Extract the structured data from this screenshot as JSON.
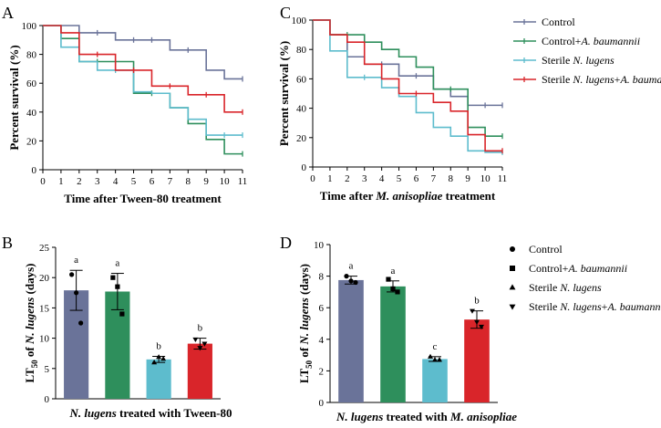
{
  "colors": {
    "control": "#6a7399",
    "control_ab": "#2e8f5c",
    "sterile": "#5dbccd",
    "sterile_ab": "#d9252a"
  },
  "legend_top": [
    {
      "key": "control",
      "label": "Control"
    },
    {
      "key": "control_ab",
      "label": "Control+",
      "italic": "A. baumannii"
    },
    {
      "key": "sterile",
      "label": "Sterile ",
      "italic": "N. lugens"
    },
    {
      "key": "sterile_ab",
      "label": "Sterile ",
      "italic": "N. lugens",
      "suffix": "+",
      "italic2": "A. baumannii"
    }
  ],
  "legend_bottom": [
    {
      "marker": "circle",
      "label": "Control"
    },
    {
      "marker": "square",
      "label": "Control+",
      "italic": "A. baumannii"
    },
    {
      "marker": "triangle-up",
      "label": "Sterile ",
      "italic": "N. lugens"
    },
    {
      "marker": "triangle-down",
      "label": "Sterile ",
      "italic": "N. lugens",
      "suffix": "+",
      "italic2": "A. baumannii"
    }
  ],
  "chart_data": [
    {
      "panel": "A",
      "type": "line",
      "step": true,
      "ylabel": "Percent survival (%)",
      "xlabel": "Time after Tween-80 treatment",
      "xlim": [
        0,
        11
      ],
      "ylim": [
        0,
        100
      ],
      "xticks": [
        "0",
        "1",
        "2",
        "3",
        "4",
        "5",
        "6",
        "7",
        "8",
        "9",
        "10",
        "11"
      ],
      "yticks": [
        "0",
        "20",
        "40",
        "60",
        "80",
        "100"
      ],
      "series": [
        {
          "key": "control",
          "steps": [
            [
              0,
              100
            ],
            [
              2,
              95
            ],
            [
              4,
              90
            ],
            [
              7,
              83
            ],
            [
              9,
              69
            ],
            [
              10,
              63
            ]
          ],
          "censor": [
            [
              3,
              95
            ],
            [
              5,
              90
            ],
            [
              6,
              90
            ],
            [
              8,
              83
            ],
            [
              11,
              63
            ]
          ]
        },
        {
          "key": "control_ab",
          "steps": [
            [
              0,
              100
            ],
            [
              1,
              91
            ],
            [
              2,
              75
            ],
            [
              5,
              53
            ],
            [
              7,
              43
            ],
            [
              8,
              32
            ],
            [
              9,
              21
            ],
            [
              10,
              11
            ]
          ],
          "censor": [
            [
              3,
              75
            ],
            [
              4,
              75
            ],
            [
              6,
              53
            ],
            [
              11,
              11
            ]
          ]
        },
        {
          "key": "sterile",
          "steps": [
            [
              0,
              100
            ],
            [
              1,
              85
            ],
            [
              2,
              75
            ],
            [
              3,
              69
            ],
            [
              5,
              54
            ],
            [
              6,
              53
            ],
            [
              7,
              43
            ],
            [
              8,
              35
            ],
            [
              9,
              24
            ]
          ],
          "censor": [
            [
              4,
              69
            ],
            [
              10,
              24
            ],
            [
              11,
              24
            ]
          ]
        },
        {
          "key": "sterile_ab",
          "steps": [
            [
              0,
              100
            ],
            [
              1,
              95
            ],
            [
              2,
              80
            ],
            [
              4,
              69
            ],
            [
              6,
              58
            ],
            [
              8,
              52
            ],
            [
              10,
              40
            ]
          ],
          "censor": [
            [
              3,
              80
            ],
            [
              5,
              69
            ],
            [
              7,
              58
            ],
            [
              9,
              52
            ],
            [
              11,
              40
            ]
          ]
        }
      ]
    },
    {
      "panel": "C",
      "type": "line",
      "step": true,
      "ylabel": "Percent survival (%)",
      "xlabel_prefix": "Time after ",
      "xlabel_italic": "M. anisopliae",
      "xlabel_suffix": " treatment",
      "xlim": [
        0,
        11
      ],
      "ylim": [
        0,
        100
      ],
      "xticks": [
        "0",
        "1",
        "2",
        "3",
        "4",
        "5",
        "6",
        "7",
        "8",
        "9",
        "10",
        "11"
      ],
      "yticks": [
        "0",
        "20",
        "40",
        "60",
        "80",
        "100"
      ],
      "series": [
        {
          "key": "control",
          "steps": [
            [
              0,
              100
            ],
            [
              1,
              90
            ],
            [
              2,
              75
            ],
            [
              3,
              70
            ],
            [
              5,
              62
            ],
            [
              7,
              53
            ],
            [
              8,
              48
            ],
            [
              9,
              42
            ]
          ],
          "censor": [
            [
              4,
              70
            ],
            [
              6,
              62
            ],
            [
              10,
              42
            ],
            [
              11,
              42
            ]
          ]
        },
        {
          "key": "control_ab",
          "steps": [
            [
              0,
              100
            ],
            [
              1,
              90
            ],
            [
              3,
              85
            ],
            [
              4,
              80
            ],
            [
              5,
              75
            ],
            [
              6,
              68
            ],
            [
              7,
              53
            ],
            [
              9,
              27
            ],
            [
              10,
              21
            ]
          ],
          "censor": [
            [
              2,
              90
            ],
            [
              8,
              53
            ],
            [
              11,
              21
            ]
          ]
        },
        {
          "key": "sterile",
          "steps": [
            [
              0,
              100
            ],
            [
              1,
              79
            ],
            [
              2,
              61
            ],
            [
              4,
              54
            ],
            [
              5,
              48
            ],
            [
              6,
              37
            ],
            [
              7,
              27
            ],
            [
              8,
              21
            ],
            [
              9,
              11
            ],
            [
              10,
              10
            ]
          ],
          "censor": [
            [
              3,
              61
            ],
            [
              11,
              10
            ]
          ]
        },
        {
          "key": "sterile_ab",
          "steps": [
            [
              0,
              100
            ],
            [
              1,
              90
            ],
            [
              2,
              85
            ],
            [
              3,
              70
            ],
            [
              4,
              60
            ],
            [
              5,
              50
            ],
            [
              7,
              44
            ],
            [
              8,
              38
            ],
            [
              9,
              22
            ],
            [
              10,
              11
            ]
          ],
          "censor": [
            [
              6,
              50
            ],
            [
              11,
              11
            ]
          ]
        }
      ]
    },
    {
      "panel": "B",
      "type": "bar",
      "ylim": [
        0,
        25
      ],
      "yticks": [
        "0",
        "5",
        "10",
        "15",
        "20",
        "25"
      ],
      "ylabel_main": "LT",
      "ylabel_sub": "50",
      "ylabel_rest": " of ",
      "ylabel_italic": "N. lugens",
      "ylabel_end": " (days)",
      "xlabel_italic": "N. lugens",
      "xlabel_rest": " treated with Tween-80",
      "bars": [
        {
          "key": "control",
          "marker": "circle",
          "value": 17.9,
          "err": 3.3,
          "sig": "a",
          "points": [
            20.5,
            17.5,
            12.5
          ]
        },
        {
          "key": "control_ab",
          "marker": "square",
          "value": 17.7,
          "err": 3.0,
          "sig": "a",
          "points": [
            20.0,
            18.5,
            14.0
          ]
        },
        {
          "key": "sterile",
          "marker": "triangle-up",
          "value": 6.5,
          "err": 0.5,
          "sig": "b",
          "points": [
            6.0,
            6.9,
            6.6
          ]
        },
        {
          "key": "sterile_ab",
          "marker": "triangle-down",
          "value": 9.1,
          "err": 0.9,
          "sig": "b",
          "points": [
            9.8,
            8.4,
            9.1
          ]
        }
      ]
    },
    {
      "panel": "D",
      "type": "bar",
      "ylim": [
        0,
        10
      ],
      "yticks": [
        "0",
        "2",
        "4",
        "6",
        "8",
        "10"
      ],
      "ylabel_main": "LT",
      "ylabel_sub": "50",
      "ylabel_rest": " of ",
      "ylabel_italic": "N. lugens",
      "ylabel_end": " (days)",
      "xlabel_italic": "N. lugens",
      "xlabel_rest": " treated with ",
      "xlabel_italic2": "M. anisopliae",
      "bars": [
        {
          "key": "control",
          "marker": "circle",
          "value": 7.75,
          "err": 0.25,
          "sig": "a",
          "points": [
            8.0,
            7.7,
            7.6
          ]
        },
        {
          "key": "control_ab",
          "marker": "square",
          "value": 7.35,
          "err": 0.35,
          "sig": "a",
          "points": [
            7.8,
            7.2,
            7.0
          ]
        },
        {
          "key": "sterile",
          "marker": "triangle-up",
          "value": 2.75,
          "err": 0.15,
          "sig": "c",
          "points": [
            2.9,
            2.7,
            2.7
          ]
        },
        {
          "key": "sterile_ab",
          "marker": "triangle-down",
          "value": 5.25,
          "err": 0.55,
          "sig": "b",
          "points": [
            5.8,
            5.1,
            4.8
          ]
        }
      ]
    }
  ]
}
